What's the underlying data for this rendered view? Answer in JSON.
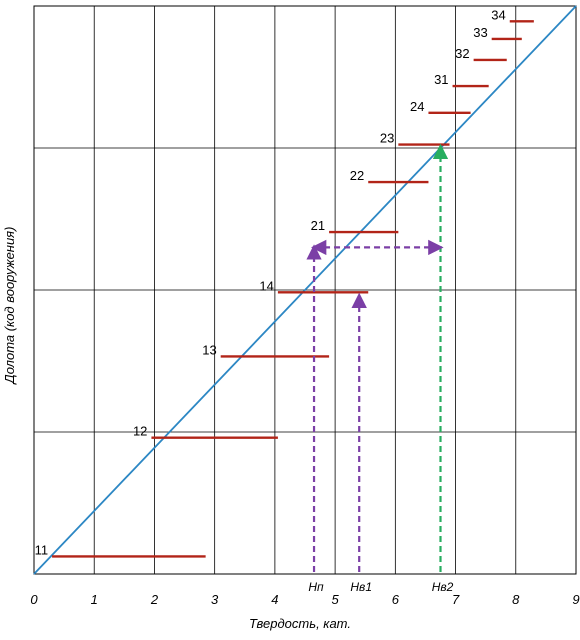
{
  "chart_data": {
    "type": "line",
    "xlabel": "Твердость, кат.",
    "ylabel": "Долота (код вооружения)",
    "xlim": [
      0,
      9
    ],
    "x_ticks": [
      "0",
      "1",
      "2",
      "3",
      "4",
      "5",
      "6",
      "7",
      "8",
      "9"
    ],
    "grid": true,
    "series": [
      {
        "type": "diagonal",
        "x": [
          0,
          9
        ],
        "level": [
          0,
          1
        ]
      }
    ],
    "bit_codes": [
      {
        "code": "11",
        "x_start": 0.3,
        "x_end": 2.85,
        "level": 0.031
      },
      {
        "code": "12",
        "x_start": 1.95,
        "x_end": 4.05,
        "level": 0.24
      },
      {
        "code": "13",
        "x_start": 3.1,
        "x_end": 4.9,
        "level": 0.383
      },
      {
        "code": "14",
        "x_start": 4.05,
        "x_end": 5.55,
        "level": 0.496
      },
      {
        "code": "21",
        "x_start": 4.9,
        "x_end": 6.05,
        "level": 0.602
      },
      {
        "code": "22",
        "x_start": 5.55,
        "x_end": 6.55,
        "level": 0.69
      },
      {
        "code": "23",
        "x_start": 6.05,
        "x_end": 6.9,
        "level": 0.756
      },
      {
        "code": "24",
        "x_start": 6.55,
        "x_end": 7.25,
        "level": 0.812
      },
      {
        "code": "31",
        "x_start": 6.95,
        "x_end": 7.55,
        "level": 0.859
      },
      {
        "code": "32",
        "x_start": 7.3,
        "x_end": 7.85,
        "level": 0.905
      },
      {
        "code": "33",
        "x_start": 7.6,
        "x_end": 8.1,
        "level": 0.942
      },
      {
        "code": "34",
        "x_start": 7.9,
        "x_end": 8.3,
        "level": 0.973
      }
    ],
    "markers": [
      {
        "name": "Нп",
        "x": 4.65,
        "level_top": 0.575,
        "color": "#7b3fa6",
        "style": "dashed"
      },
      {
        "name": "Нв1",
        "x": 5.4,
        "level_top": 0.49,
        "color": "#7b3fa6",
        "style": "dashed"
      },
      {
        "name": "Нв2",
        "x": 6.75,
        "level_top": 0.752,
        "color": "#27ae60",
        "style": "dashed"
      }
    ],
    "range_arrow": {
      "x_start": 4.65,
      "x_end": 6.75,
      "level": 0.575,
      "color": "#7b3fa6"
    },
    "colors": {
      "diagonal": "#2c87c4",
      "bit_bar": "#b22418",
      "grid": "#000000"
    }
  }
}
